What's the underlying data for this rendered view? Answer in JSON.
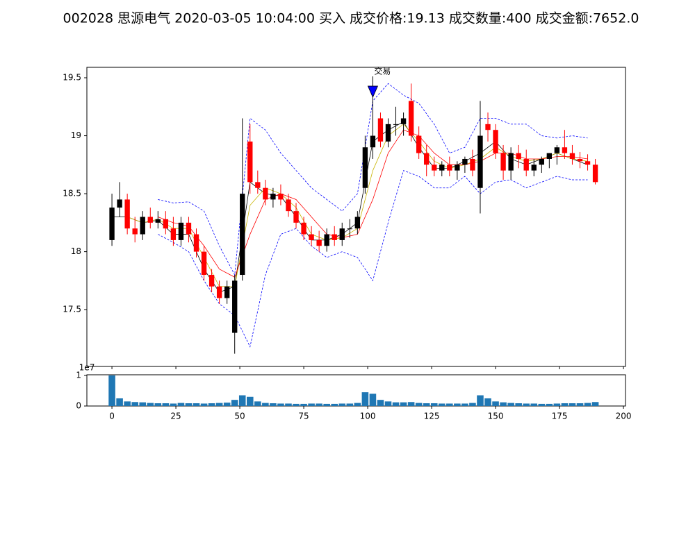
{
  "chart_data": {
    "type": "candlestick",
    "title": "002028 思源电气 2020-03-05 10:04:00 买入 成交价格:19.13 成交数量:400 成交金额:7652.0",
    "xlim": [
      -9.8,
      200.8
    ],
    "xticks": [
      0,
      25,
      50,
      75,
      100,
      125,
      150,
      175,
      200
    ],
    "ylim": [
      17.01,
      19.59
    ],
    "yticks": [
      17.5,
      18.0,
      18.5,
      19.0,
      19.5
    ],
    "up_color": "#000000",
    "down_color": "#ff0000",
    "x": [
      0,
      3,
      6,
      9,
      12,
      15,
      18,
      21,
      24,
      27,
      30,
      33,
      36,
      39,
      42,
      45,
      48,
      51,
      54,
      57,
      60,
      63,
      66,
      69,
      72,
      75,
      78,
      81,
      84,
      87,
      90,
      93,
      96,
      99,
      102,
      105,
      108,
      111,
      114,
      117,
      120,
      123,
      126,
      129,
      132,
      135,
      138,
      141,
      144,
      147,
      150,
      153,
      156,
      159,
      162,
      165,
      168,
      171,
      174,
      177,
      180,
      183,
      186,
      189
    ],
    "open": [
      18.1,
      18.38,
      18.45,
      18.2,
      18.15,
      18.3,
      18.25,
      18.28,
      18.2,
      18.1,
      18.25,
      18.15,
      18.0,
      17.8,
      17.7,
      17.6,
      17.3,
      17.8,
      18.95,
      18.6,
      18.55,
      18.45,
      18.5,
      18.45,
      18.35,
      18.25,
      18.15,
      18.1,
      18.05,
      18.15,
      18.1,
      18.2,
      18.2,
      18.55,
      18.9,
      19.15,
      18.95,
      19.1,
      19.1,
      19.3,
      19.0,
      18.85,
      18.75,
      18.7,
      18.75,
      18.7,
      18.75,
      18.8,
      18.55,
      19.1,
      19.05,
      18.85,
      18.7,
      18.85,
      18.8,
      18.7,
      18.75,
      18.8,
      18.85,
      18.9,
      18.85,
      18.8,
      18.78,
      18.75
    ],
    "high": [
      18.5,
      18.6,
      18.5,
      18.3,
      18.35,
      18.38,
      18.35,
      18.35,
      18.3,
      18.3,
      18.3,
      18.2,
      18.05,
      17.85,
      17.75,
      17.75,
      17.8,
      19.15,
      19.1,
      18.7,
      18.62,
      18.55,
      18.58,
      18.5,
      18.42,
      18.3,
      18.22,
      18.18,
      18.2,
      18.22,
      18.25,
      18.28,
      18.35,
      19.0,
      19.35,
      19.2,
      19.15,
      19.25,
      19.2,
      19.45,
      19.08,
      18.92,
      18.82,
      18.78,
      18.82,
      18.78,
      18.82,
      18.88,
      19.3,
      19.2,
      19.1,
      18.92,
      18.9,
      18.92,
      18.88,
      18.8,
      18.82,
      18.85,
      18.92,
      19.05,
      18.92,
      18.86,
      18.84,
      18.8
    ],
    "low": [
      18.05,
      18.3,
      18.15,
      18.08,
      18.1,
      18.2,
      18.2,
      18.15,
      18.05,
      18.05,
      18.08,
      17.95,
      17.75,
      17.65,
      17.55,
      17.55,
      17.12,
      17.75,
      18.5,
      18.5,
      18.4,
      18.38,
      18.4,
      18.3,
      18.2,
      18.1,
      18.05,
      18.0,
      18.0,
      18.05,
      18.05,
      18.12,
      18.15,
      18.5,
      18.8,
      18.9,
      18.9,
      19.0,
      19.0,
      18.95,
      18.8,
      18.65,
      18.65,
      18.65,
      18.65,
      18.62,
      18.68,
      18.65,
      18.33,
      18.95,
      18.8,
      18.62,
      18.62,
      18.72,
      18.65,
      18.65,
      18.68,
      18.72,
      18.75,
      18.8,
      18.75,
      18.72,
      18.7,
      18.58
    ],
    "close": [
      18.38,
      18.45,
      18.2,
      18.15,
      18.3,
      18.25,
      18.28,
      18.2,
      18.1,
      18.25,
      18.15,
      18.0,
      17.8,
      17.7,
      17.6,
      17.7,
      17.75,
      18.5,
      18.6,
      18.55,
      18.45,
      18.5,
      18.45,
      18.35,
      18.25,
      18.15,
      18.1,
      18.05,
      18.15,
      18.1,
      18.2,
      18.2,
      18.3,
      18.9,
      19.0,
      18.95,
      19.1,
      19.1,
      19.15,
      19.0,
      18.85,
      18.75,
      18.7,
      18.75,
      18.7,
      18.75,
      18.8,
      18.7,
      19.0,
      19.05,
      18.85,
      18.7,
      18.85,
      18.8,
      18.7,
      18.75,
      18.8,
      18.85,
      18.9,
      18.85,
      18.8,
      18.78,
      18.75,
      18.6
    ],
    "lines": {
      "x": [
        0,
        6,
        12,
        18,
        24,
        30,
        36,
        42,
        48,
        54,
        60,
        66,
        72,
        78,
        84,
        90,
        96,
        102,
        108,
        114,
        120,
        126,
        132,
        138,
        144,
        150,
        156,
        162,
        168,
        174,
        180,
        186
      ],
      "series": [
        {
          "color": "#000000",
          "style": "solid",
          "values": [
            18.3,
            18.3,
            18.25,
            18.27,
            18.15,
            18.15,
            17.85,
            17.65,
            17.7,
            18.6,
            18.5,
            18.48,
            18.3,
            18.1,
            18.1,
            18.15,
            18.25,
            18.95,
            19.05,
            19.12,
            18.9,
            18.72,
            18.72,
            18.78,
            18.85,
            18.95,
            18.8,
            18.75,
            18.8,
            18.85,
            18.8,
            18.75
          ]
        },
        {
          "color": "#c8b400",
          "style": "solid",
          "values": [
            null,
            18.3,
            18.25,
            18.28,
            18.2,
            18.2,
            17.95,
            17.7,
            17.7,
            18.4,
            18.55,
            18.5,
            18.38,
            18.15,
            18.1,
            18.12,
            18.2,
            18.7,
            19.0,
            19.1,
            18.95,
            18.78,
            18.72,
            18.75,
            18.8,
            18.9,
            18.82,
            18.78,
            18.8,
            18.85,
            18.8,
            18.78
          ]
        },
        {
          "color": "#ff0000",
          "style": "solid",
          "values": [
            null,
            null,
            null,
            18.3,
            18.25,
            18.22,
            18.05,
            17.85,
            17.78,
            18.15,
            18.45,
            18.5,
            18.45,
            18.3,
            18.15,
            18.12,
            18.15,
            18.45,
            18.85,
            19.05,
            19.0,
            18.85,
            18.75,
            18.75,
            18.78,
            18.85,
            18.85,
            18.8,
            18.8,
            18.82,
            18.82,
            18.8
          ]
        },
        {
          "color": "#0000ff",
          "style": "dashed",
          "values": [
            null,
            null,
            null,
            18.45,
            18.42,
            18.43,
            18.35,
            18.05,
            17.8,
            19.15,
            19.05,
            18.85,
            18.7,
            18.55,
            18.45,
            18.35,
            18.5,
            19.3,
            19.45,
            19.35,
            19.28,
            19.1,
            18.85,
            18.9,
            19.15,
            19.15,
            19.1,
            19.1,
            19.0,
            18.98,
            19.0,
            18.98
          ]
        },
        {
          "color": "#0000ff",
          "style": "dashed",
          "values": [
            null,
            null,
            null,
            18.15,
            18.08,
            18.0,
            17.75,
            17.55,
            17.45,
            17.18,
            17.8,
            18.15,
            18.2,
            18.05,
            17.95,
            18.0,
            17.95,
            17.75,
            18.25,
            18.7,
            18.65,
            18.55,
            18.55,
            18.65,
            18.5,
            18.6,
            18.62,
            18.55,
            18.6,
            18.65,
            18.62,
            18.62
          ]
        }
      ]
    },
    "annotation": {
      "text": "交易",
      "x": 102,
      "y": 19.38,
      "color": "#0000ff"
    },
    "volume": {
      "ylim": [
        0,
        10200000
      ],
      "yticks": [
        0,
        {
          "value": 10000000,
          "label": "1"
        }
      ],
      "offset_label": "1e7",
      "color": "#1f77b4",
      "values": [
        10000000,
        2500000,
        1500000,
        1300000,
        1200000,
        1000000,
        900000,
        900000,
        800000,
        1000000,
        900000,
        900000,
        800000,
        900000,
        1000000,
        1100000,
        2000000,
        3500000,
        3000000,
        1500000,
        1000000,
        900000,
        800000,
        800000,
        700000,
        700000,
        800000,
        800000,
        700000,
        700000,
        800000,
        800000,
        1000000,
        4500000,
        4000000,
        2000000,
        1500000,
        1200000,
        1200000,
        1300000,
        1000000,
        900000,
        900000,
        800000,
        800000,
        800000,
        800000,
        1000000,
        3500000,
        2500000,
        1500000,
        1200000,
        1000000,
        900000,
        800000,
        800000,
        700000,
        700000,
        800000,
        900000,
        900000,
        900000,
        1000000,
        1300000
      ]
    }
  }
}
